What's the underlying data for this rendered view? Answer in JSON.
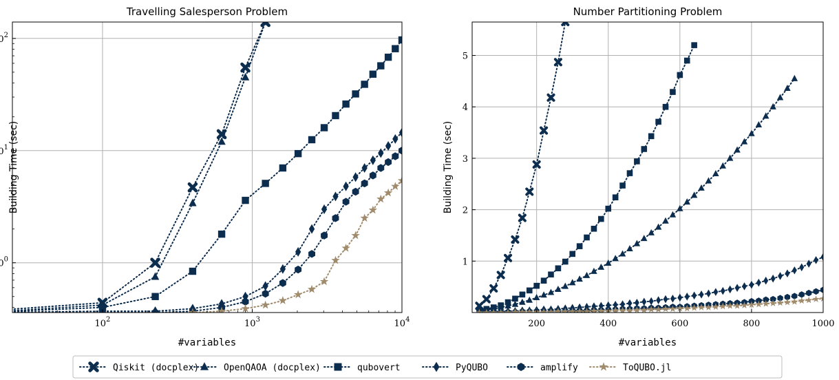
{
  "colors": {
    "navy": "#0c2d4e",
    "tan": "#a08b6c",
    "grid": "#b0b0b0"
  },
  "legend": [
    {
      "name": "Qiskit (docplex)",
      "marker": "x",
      "color": "#0c2d4e"
    },
    {
      "name": "OpenQAOA (docplex)",
      "marker": "triangle",
      "color": "#0c2d4e"
    },
    {
      "name": "qubovert",
      "marker": "square",
      "color": "#0c2d4e"
    },
    {
      "name": "PyQUBO",
      "marker": "diamond",
      "color": "#0c2d4e"
    },
    {
      "name": "amplify",
      "marker": "hexagon",
      "color": "#0c2d4e"
    },
    {
      "name": "ToQUBO.jl",
      "marker": "star",
      "color": "#a08b6c"
    }
  ],
  "chart_data": [
    {
      "type": "line",
      "title": "Travelling Salesperson Problem",
      "xlabel": "#variables",
      "ylabel": "Building Time (sec)",
      "xscale": "log",
      "yscale": "log",
      "xlim": [
        25,
        10000
      ],
      "ylim": [
        0.36,
        140
      ],
      "xticks": [
        {
          "v": 100,
          "base": "10",
          "exp": "2"
        },
        {
          "v": 1000,
          "base": "10",
          "exp": "3"
        },
        {
          "v": 10000,
          "base": "10",
          "exp": "4"
        }
      ],
      "yticks": [
        {
          "v": 1,
          "base": "10",
          "exp": "0"
        },
        {
          "v": 10,
          "base": "10",
          "exp": "1"
        },
        {
          "v": 100,
          "base": "10",
          "exp": "2"
        }
      ],
      "grid": true,
      "series": [
        {
          "name": "Qiskit (docplex)",
          "x": [
            16,
            100,
            225,
            400,
            625,
            900,
            1225
          ],
          "y": [
            0.37,
            0.44,
            1.0,
            4.7,
            14,
            55,
            140
          ]
        },
        {
          "name": "OpenQAOA (docplex)",
          "x": [
            16,
            100,
            225,
            400,
            625,
            900,
            1225
          ],
          "y": [
            0.36,
            0.42,
            0.75,
            3.4,
            12,
            45,
            140
          ]
        },
        {
          "name": "qubovert",
          "x": [
            16,
            100,
            225,
            400,
            625,
            900,
            1225,
            1600,
            2025,
            2500,
            3025,
            3600,
            4225,
            4900,
            5625,
            6400,
            7225,
            8100,
            9025,
            10000
          ],
          "y": [
            0.36,
            0.4,
            0.5,
            0.84,
            1.8,
            3.6,
            5.1,
            7.0,
            9.4,
            12.5,
            16,
            20.5,
            26,
            32,
            39,
            48,
            57,
            68,
            81,
            97
          ]
        },
        {
          "name": "PyQUBO",
          "x": [
            16,
            100,
            225,
            400,
            625,
            900,
            1225,
            1600,
            2025,
            2500,
            3025,
            3600,
            4225,
            4900,
            5625,
            6400,
            7225,
            8100,
            9025,
            10000
          ],
          "y": [
            0.36,
            0.37,
            0.37,
            0.39,
            0.43,
            0.5,
            0.62,
            0.88,
            1.25,
            2.0,
            3.0,
            3.9,
            4.8,
            5.8,
            7.0,
            8.2,
            9.5,
            11,
            12.7,
            14.5
          ]
        },
        {
          "name": "amplify",
          "x": [
            16,
            100,
            225,
            400,
            625,
            900,
            1225,
            1600,
            2025,
            2500,
            3025,
            3600,
            4225,
            4900,
            5625,
            6400,
            7225,
            8100,
            9025,
            10000
          ],
          "y": [
            0.35,
            0.36,
            0.36,
            0.37,
            0.4,
            0.45,
            0.53,
            0.66,
            0.87,
            1.2,
            1.75,
            2.5,
            3.5,
            4.3,
            5.1,
            6.0,
            7.0,
            7.9,
            8.9,
            10
          ]
        },
        {
          "name": "ToQUBO.jl",
          "x": [
            400,
            625,
            900,
            1225,
            1600,
            2025,
            2500,
            3025,
            3600,
            4225,
            4900,
            5625,
            6400,
            7225,
            8100,
            9025,
            10000
          ],
          "y": [
            0.36,
            0.37,
            0.39,
            0.42,
            0.46,
            0.52,
            0.58,
            0.68,
            1.05,
            1.35,
            1.75,
            2.5,
            2.95,
            3.7,
            4.2,
            4.8,
            5.4
          ]
        }
      ]
    },
    {
      "type": "line",
      "title": "Number Partitioning Problem",
      "xlabel": "#variables",
      "ylabel": "Building Time (sec)",
      "xscale": "linear",
      "yscale": "linear",
      "xlim": [
        20,
        1000
      ],
      "ylim": [
        0,
        5.65
      ],
      "xticks": [
        {
          "v": 200,
          "label": "200"
        },
        {
          "v": 400,
          "label": "400"
        },
        {
          "v": 600,
          "label": "600"
        },
        {
          "v": 800,
          "label": "800"
        },
        {
          "v": 1000,
          "label": "1000"
        }
      ],
      "yticks": [
        {
          "v": 1,
          "label": "1"
        },
        {
          "v": 2,
          "label": "2"
        },
        {
          "v": 3,
          "label": "3"
        },
        {
          "v": 4,
          "label": "4"
        },
        {
          "v": 5,
          "label": "5"
        }
      ],
      "grid": true,
      "series": [
        {
          "name": "Qiskit (docplex)",
          "x": [
            40,
            60,
            80,
            100,
            120,
            140,
            160,
            180,
            200,
            220,
            240,
            260,
            280
          ],
          "y": [
            0.13,
            0.26,
            0.47,
            0.73,
            1.06,
            1.42,
            1.84,
            2.35,
            2.88,
            3.54,
            4.18,
            4.87,
            5.65
          ]
        },
        {
          "name": "OpenQAOA (docplex)",
          "x": [
            40,
            60,
            80,
            100,
            120,
            140,
            160,
            180,
            200,
            220,
            240,
            260,
            280,
            300,
            320,
            340,
            360,
            380,
            400,
            420,
            440,
            460,
            480,
            500,
            520,
            540,
            560,
            580,
            600,
            620,
            640,
            660,
            680,
            700,
            720,
            740,
            760,
            780,
            800,
            820,
            840,
            860,
            880,
            900,
            920
          ],
          "y": [
            0.03,
            0.05,
            0.07,
            0.1,
            0.13,
            0.16,
            0.2,
            0.24,
            0.29,
            0.34,
            0.39,
            0.45,
            0.51,
            0.58,
            0.65,
            0.72,
            0.8,
            0.88,
            0.96,
            1.05,
            1.14,
            1.24,
            1.34,
            1.44,
            1.55,
            1.66,
            1.78,
            1.9,
            2.02,
            2.15,
            2.28,
            2.42,
            2.56,
            2.7,
            2.85,
            3.0,
            3.16,
            3.32,
            3.48,
            3.65,
            3.82,
            4.0,
            4.18,
            4.36,
            4.55
          ]
        },
        {
          "name": "qubovert",
          "x": [
            40,
            60,
            80,
            100,
            120,
            140,
            160,
            180,
            200,
            220,
            240,
            260,
            280,
            300,
            320,
            340,
            360,
            380,
            400,
            420,
            440,
            460,
            480,
            500,
            520,
            540,
            560,
            580,
            600,
            620,
            640
          ],
          "y": [
            0.04,
            0.07,
            0.1,
            0.14,
            0.2,
            0.27,
            0.35,
            0.43,
            0.52,
            0.62,
            0.74,
            0.86,
            0.99,
            1.14,
            1.29,
            1.46,
            1.63,
            1.82,
            2.02,
            2.24,
            2.47,
            2.71,
            2.94,
            3.18,
            3.43,
            3.71,
            4.0,
            4.29,
            4.62,
            4.9,
            5.2
          ]
        },
        {
          "name": "PyQUBO",
          "x": [
            40,
            60,
            80,
            100,
            120,
            140,
            160,
            180,
            200,
            220,
            240,
            260,
            280,
            300,
            320,
            340,
            360,
            380,
            400,
            420,
            440,
            460,
            480,
            500,
            520,
            540,
            560,
            580,
            600,
            620,
            640,
            660,
            680,
            700,
            720,
            740,
            760,
            780,
            800,
            820,
            840,
            860,
            880,
            900,
            920,
            940,
            960,
            980,
            1000
          ],
          "y": [
            0.01,
            0.01,
            0.02,
            0.02,
            0.03,
            0.03,
            0.04,
            0.04,
            0.05,
            0.06,
            0.06,
            0.07,
            0.08,
            0.09,
            0.1,
            0.11,
            0.12,
            0.13,
            0.14,
            0.15,
            0.16,
            0.18,
            0.19,
            0.21,
            0.22,
            0.24,
            0.26,
            0.27,
            0.29,
            0.31,
            0.33,
            0.35,
            0.37,
            0.4,
            0.42,
            0.45,
            0.48,
            0.51,
            0.54,
            0.58,
            0.62,
            0.66,
            0.71,
            0.76,
            0.82,
            0.88,
            0.95,
            1.02,
            1.08
          ]
        },
        {
          "name": "amplify",
          "x": [
            40,
            60,
            80,
            100,
            120,
            140,
            160,
            180,
            200,
            220,
            240,
            260,
            280,
            300,
            320,
            340,
            360,
            380,
            400,
            420,
            440,
            460,
            480,
            500,
            520,
            540,
            560,
            580,
            600,
            620,
            640,
            660,
            680,
            700,
            720,
            740,
            760,
            780,
            800,
            820,
            840,
            860,
            880,
            900,
            920,
            940,
            960,
            980,
            1000
          ],
          "y": [
            0.01,
            0.01,
            0.01,
            0.01,
            0.01,
            0.01,
            0.02,
            0.02,
            0.02,
            0.02,
            0.03,
            0.03,
            0.03,
            0.04,
            0.04,
            0.04,
            0.05,
            0.05,
            0.06,
            0.06,
            0.07,
            0.07,
            0.08,
            0.08,
            0.09,
            0.09,
            0.1,
            0.11,
            0.11,
            0.12,
            0.13,
            0.14,
            0.15,
            0.16,
            0.17,
            0.18,
            0.19,
            0.2,
            0.22,
            0.23,
            0.25,
            0.26,
            0.28,
            0.3,
            0.32,
            0.35,
            0.38,
            0.41,
            0.44
          ]
        },
        {
          "name": "ToQUBO.jl",
          "x": [
            40,
            60,
            80,
            100,
            120,
            140,
            160,
            180,
            200,
            220,
            240,
            260,
            280,
            300,
            320,
            340,
            360,
            380,
            400,
            420,
            440,
            460,
            480,
            500,
            520,
            540,
            560,
            580,
            600,
            620,
            640,
            660,
            680,
            700,
            720,
            740,
            760,
            780,
            800,
            820,
            840,
            860,
            880,
            900,
            920,
            940,
            960,
            980,
            1000
          ],
          "y": [
            0.0,
            0.0,
            0.0,
            0.0,
            0.0,
            0.01,
            0.01,
            0.01,
            0.01,
            0.01,
            0.01,
            0.02,
            0.02,
            0.02,
            0.02,
            0.02,
            0.03,
            0.03,
            0.03,
            0.04,
            0.04,
            0.04,
            0.05,
            0.05,
            0.06,
            0.06,
            0.07,
            0.07,
            0.08,
            0.08,
            0.09,
            0.1,
            0.1,
            0.11,
            0.12,
            0.13,
            0.13,
            0.14,
            0.15,
            0.16,
            0.17,
            0.18,
            0.19,
            0.2,
            0.21,
            0.23,
            0.24,
            0.26,
            0.27
          ]
        }
      ]
    }
  ]
}
